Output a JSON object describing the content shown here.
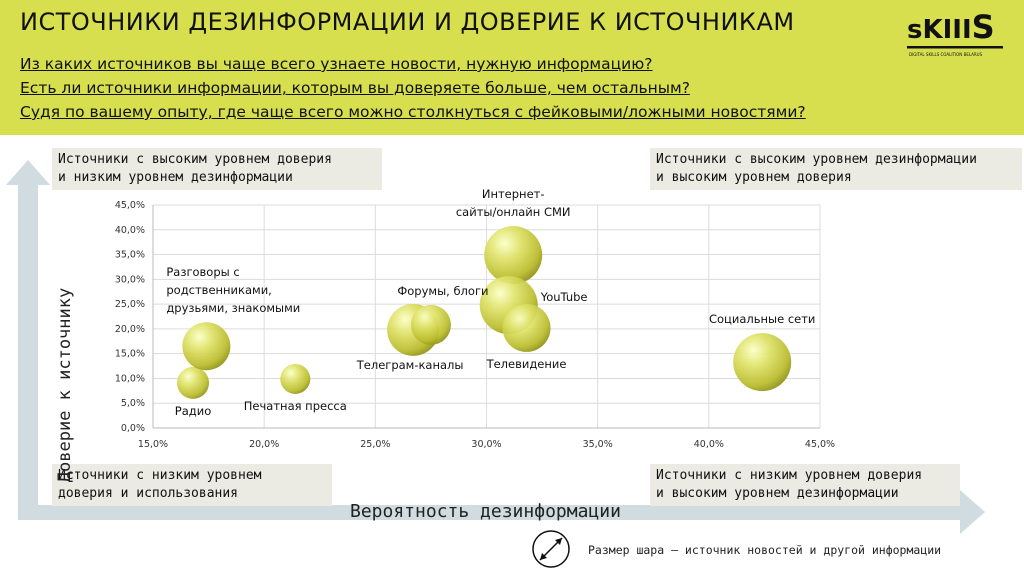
{
  "header": {
    "title": "ИСТОЧНИКИ ДЕЗИНФОРМАЦИИ И ДОВЕРИЕ К ИСТОЧНИКАМ",
    "questions": [
      "Из каких источников вы чаще всего узнаете новости, нужную информацию?",
      "Есть ли источники информации, которым вы доверяете больше, чем остальным?",
      "Судя по вашему опыту, где чаще всего можно столкнуться с фейковыми/ложными новостями?"
    ],
    "logo_text": "sKIIIS",
    "logo_sub": "DIGITAL SKILLS COALITION BELARUS",
    "bg_color": "#d7df4f"
  },
  "quadrants": {
    "top_left": [
      "Источники с высоким уровнем доверия",
      "и низким уровнем дезинформации"
    ],
    "top_right": [
      "Источники с высоким уровнем дезинформации",
      "и высоким уровнем доверия"
    ],
    "bottom_left": [
      "Источники с низким уровнем",
      "доверия и использования"
    ],
    "bottom_right": [
      "Источники с низким уровнем доверия",
      "и высоким уровнем дезинформации"
    ]
  },
  "axes": {
    "y_title": "Доверие к источнику",
    "x_title": "Вероятность дезинформации"
  },
  "note": "Размер шара – источник новостей и другой информации",
  "chart_data": {
    "type": "bubble",
    "xlim": [
      15,
      45
    ],
    "ylim": [
      0,
      45
    ],
    "x_ticks": [
      "15,0%",
      "20,0%",
      "25,0%",
      "30,0%",
      "35,0%",
      "40,0%",
      "45,0%"
    ],
    "y_ticks": [
      "0,0%",
      "5,0%",
      "10,0%",
      "15,0%",
      "20,0%",
      "25,0%",
      "30,0%",
      "35,0%",
      "40,0%",
      "45,0%"
    ],
    "xlabel": "Вероятность дезинформации",
    "ylabel": "Доверие к источнику",
    "grid": true,
    "points": [
      {
        "label": [
          "Радио"
        ],
        "x": 16.8,
        "y": 9.1,
        "size": 16,
        "lp": "below"
      },
      {
        "label": [
          "Разговоры с",
          "родственниками,",
          "друзьями, знакомыми"
        ],
        "x": 17.4,
        "y": 16.5,
        "size": 24,
        "lp": "above-left"
      },
      {
        "label": [
          "Печатная пресса"
        ],
        "x": 21.4,
        "y": 9.9,
        "size": 15,
        "lp": "below"
      },
      {
        "label": [
          "Телеграм-каналы"
        ],
        "x": 26.7,
        "y": 19.8,
        "size": 26,
        "lp": "below"
      },
      {
        "label": [
          "Форумы, блоги"
        ],
        "x": 27.5,
        "y": 20.8,
        "size": 20,
        "lp": "above"
      },
      {
        "label": [
          "Интернет-",
          "сайты/онлайн СМИ"
        ],
        "x": 31.2,
        "y": 34.9,
        "size": 29,
        "lp": "above"
      },
      {
        "label": [
          "YouTube"
        ],
        "x": 31.0,
        "y": 24.8,
        "size": 29,
        "lp": "right"
      },
      {
        "label": [
          "Телевидение"
        ],
        "x": 31.8,
        "y": 20.2,
        "size": 24,
        "lp": "below"
      },
      {
        "label": [
          "Социальные сети"
        ],
        "x": 42.4,
        "y": 13.3,
        "size": 29,
        "lp": "above"
      }
    ]
  }
}
